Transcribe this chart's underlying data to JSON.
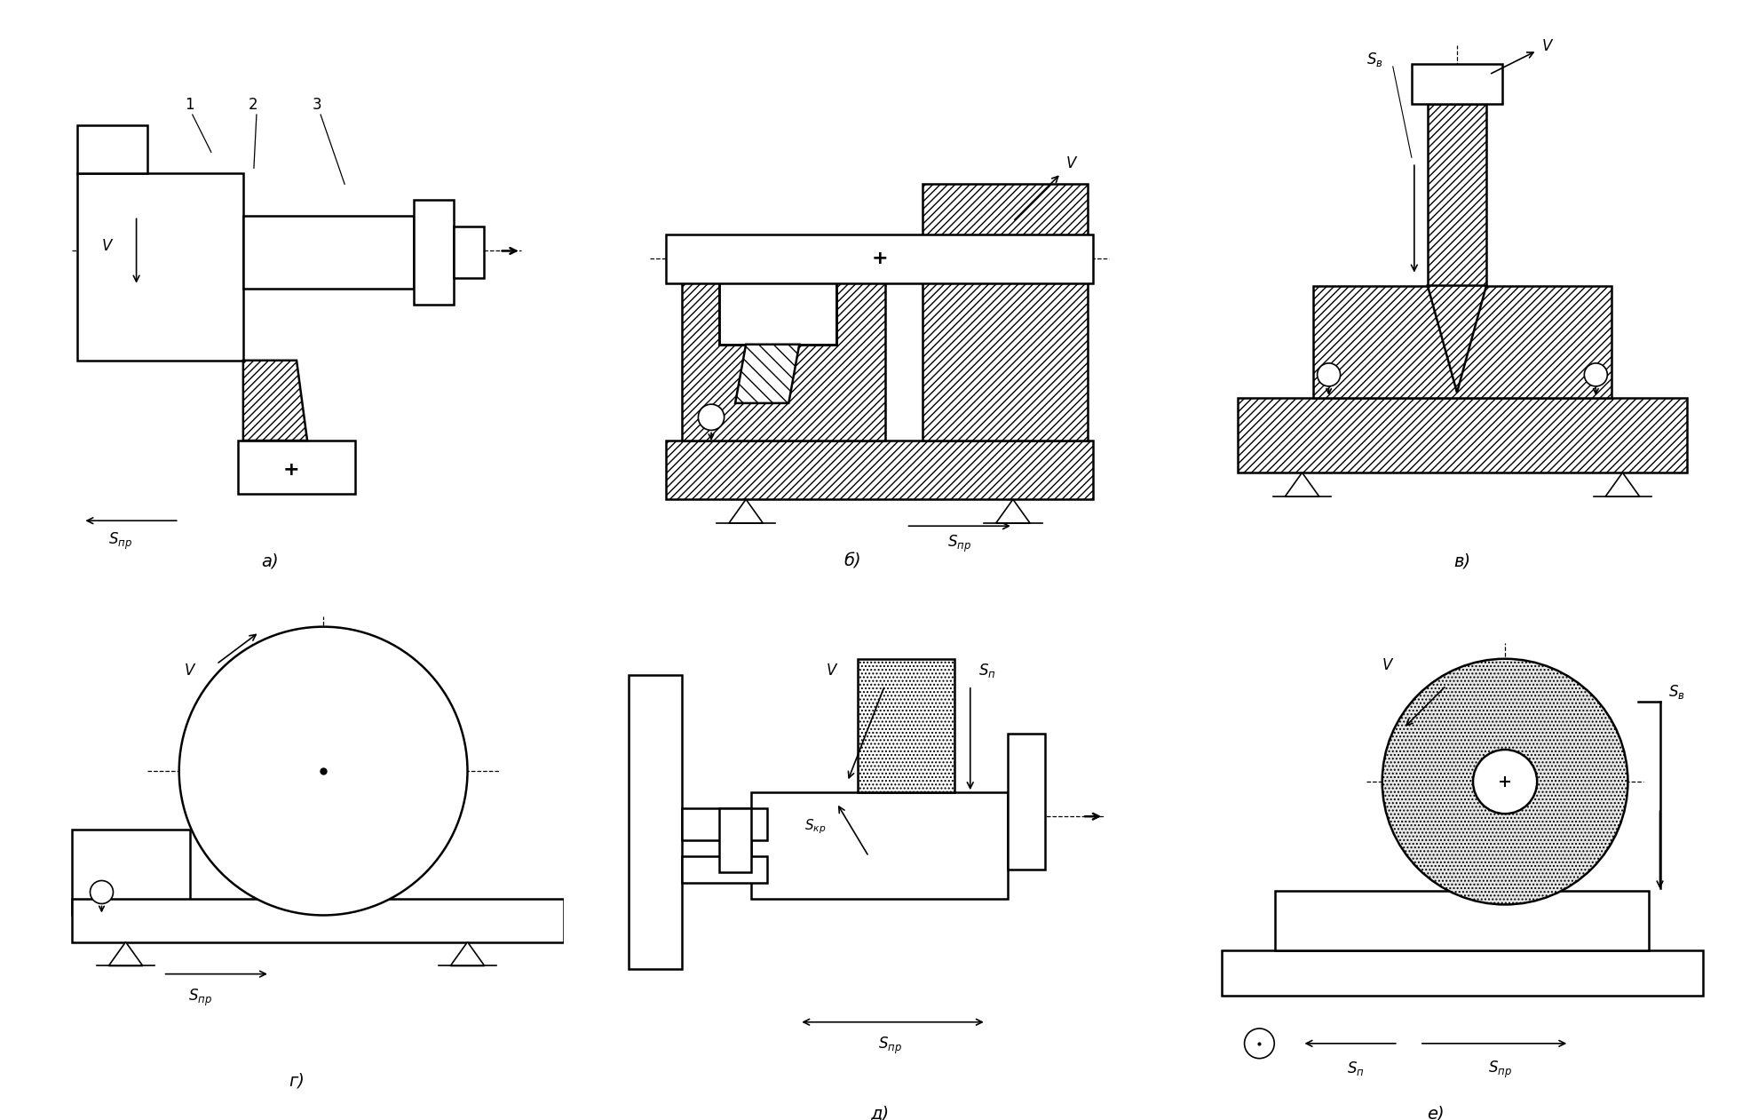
{
  "background_color": "#ffffff",
  "line_color": "#000000",
  "fig_width": 19.81,
  "fig_height": 12.61,
  "dpi": 100,
  "lw": 1.8,
  "lw_thin": 1.2,
  "lw_dash": 0.9,
  "fontsize_label": 14,
  "fontsize_motion": 12,
  "fontsize_num": 12,
  "labels": [
    "а)",
    "б)",
    "в)",
    "г)",
    "д)",
    "е)"
  ]
}
